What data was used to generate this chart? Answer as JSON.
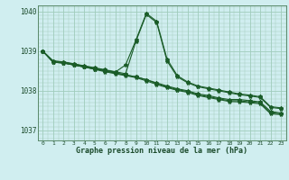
{
  "title": "Graphe pression niveau de la mer (hPa)",
  "xlim": [
    -0.5,
    23.5
  ],
  "ylim": [
    1036.75,
    1040.15
  ],
  "yticks": [
    1037,
    1038,
    1039,
    1040
  ],
  "xticks": [
    0,
    1,
    2,
    3,
    4,
    5,
    6,
    7,
    8,
    9,
    10,
    11,
    12,
    13,
    14,
    15,
    16,
    17,
    18,
    19,
    20,
    21,
    22,
    23
  ],
  "background_color": "#d0eef0",
  "grid_color": "#a0ccbb",
  "line_color": "#1a5c28",
  "series": [
    [
      1039.0,
      1038.75,
      1038.73,
      1038.68,
      1038.63,
      1038.58,
      1038.53,
      1038.48,
      1038.43,
      1039.25,
      1039.92,
      1039.72,
      1038.75,
      1038.35,
      1038.2,
      1038.1,
      1038.05,
      1038.0,
      1037.95,
      1037.9,
      1037.87,
      1037.83,
      1037.58,
      1037.55
    ],
    [
      1039.0,
      1038.75,
      1038.72,
      1038.67,
      1038.62,
      1038.57,
      1038.52,
      1038.47,
      1038.65,
      1039.28,
      1039.95,
      1039.75,
      1038.8,
      1038.38,
      1038.22,
      1038.12,
      1038.07,
      1038.02,
      1037.97,
      1037.92,
      1037.89,
      1037.85,
      1037.6,
      1037.57
    ],
    [
      1039.0,
      1038.72,
      1038.7,
      1038.65,
      1038.6,
      1038.55,
      1038.5,
      1038.45,
      1038.4,
      1038.35,
      1038.28,
      1038.2,
      1038.12,
      1038.05,
      1038.0,
      1037.92,
      1037.88,
      1037.82,
      1037.78,
      1037.78,
      1037.75,
      1037.72,
      1037.48,
      1037.44
    ],
    [
      1039.0,
      1038.72,
      1038.7,
      1038.65,
      1038.6,
      1038.55,
      1038.5,
      1038.45,
      1038.4,
      1038.35,
      1038.28,
      1038.18,
      1038.1,
      1038.03,
      1037.98,
      1037.9,
      1037.85,
      1037.8,
      1037.75,
      1037.75,
      1037.72,
      1037.7,
      1037.45,
      1037.42
    ],
    [
      1039.0,
      1038.72,
      1038.7,
      1038.65,
      1038.6,
      1038.54,
      1038.48,
      1038.43,
      1038.38,
      1038.33,
      1038.25,
      1038.16,
      1038.08,
      1038.01,
      1037.96,
      1037.88,
      1037.83,
      1037.78,
      1037.73,
      1037.72,
      1037.7,
      1037.67,
      1037.42,
      1037.4
    ]
  ]
}
